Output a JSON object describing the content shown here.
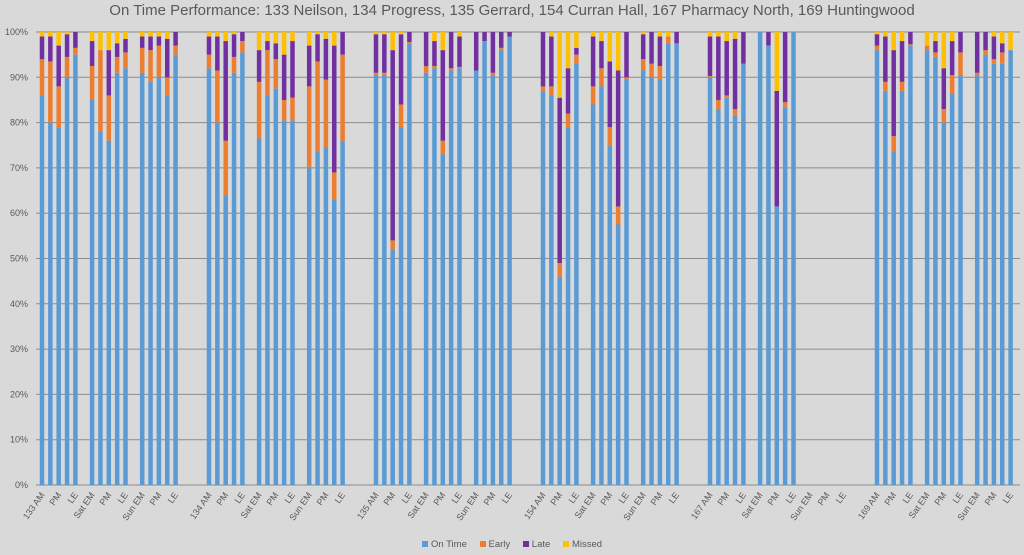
{
  "chart_data": {
    "type": "bar",
    "stacked": true,
    "title": "On Time Performance: 133 Neilson, 134 Progress, 135 Gerrard, 154 Curran Hall, 167 Pharmacy North, 169 Huntingwood",
    "xlabel": "",
    "ylabel": "",
    "ylim": [
      0,
      1
    ],
    "y_ticks": [
      "0%",
      "10%",
      "20%",
      "30%",
      "40%",
      "50%",
      "60%",
      "70%",
      "80%",
      "90%",
      "100%"
    ],
    "grid": true,
    "legend_position": "bottom",
    "colors": {
      "On Time": "#5b9bd5",
      "Early": "#ed7d31",
      "Late": "#7030a0",
      "Missed": "#ffc000"
    },
    "series_names": [
      "On Time",
      "Early",
      "Late",
      "Missed"
    ],
    "routes": [
      {
        "name": "133",
        "groups": [
          {
            "labels": [
              "133 AM",
              "",
              "PM",
              "",
              "LE"
            ],
            "bars": [
              [
                0.86,
                0.08,
                0.05,
                0.01
              ],
              [
                0.8,
                0.135,
                0.055,
                0.01
              ],
              [
                0.79,
                0.09,
                0.09,
                0.03
              ],
              [
                0.9,
                0.045,
                0.05,
                0.005
              ],
              [
                0.95,
                0.015,
                0.035,
                0.0
              ]
            ]
          },
          {
            "labels": [
              "Sat EM",
              "",
              "PM",
              "",
              "LE"
            ],
            "bars": [
              [
                0.85,
                0.075,
                0.055,
                0.02
              ],
              [
                0.78,
                0.18,
                0.0,
                0.04
              ],
              [
                0.76,
                0.1,
                0.1,
                0.04
              ],
              [
                0.91,
                0.035,
                0.03,
                0.025
              ],
              [
                0.92,
                0.035,
                0.03,
                0.015
              ]
            ]
          },
          {
            "labels": [
              "Sun EM",
              "",
              "PM",
              "",
              "LE"
            ],
            "bars": [
              [
                0.91,
                0.055,
                0.025,
                0.01
              ],
              [
                0.89,
                0.07,
                0.03,
                0.01
              ],
              [
                0.9,
                0.07,
                0.02,
                0.01
              ],
              [
                0.86,
                0.04,
                0.085,
                0.015
              ],
              [
                0.95,
                0.02,
                0.03,
                0.0
              ]
            ]
          }
        ]
      },
      {
        "name": "134",
        "groups": [
          {
            "labels": [
              "134 AM",
              "",
              "PM",
              "",
              "LE"
            ],
            "bars": [
              [
                0.92,
                0.03,
                0.04,
                0.01
              ],
              [
                0.8,
                0.115,
                0.075,
                0.01
              ],
              [
                0.64,
                0.12,
                0.22,
                0.02
              ],
              [
                0.91,
                0.035,
                0.05,
                0.005
              ],
              [
                0.955,
                0.025,
                0.02,
                0.0
              ]
            ]
          },
          {
            "labels": [
              "Sat EM",
              "",
              "PM",
              "",
              "LE"
            ],
            "bars": [
              [
                0.765,
                0.125,
                0.07,
                0.04
              ],
              [
                0.86,
                0.1,
                0.02,
                0.02
              ],
              [
                0.875,
                0.065,
                0.035,
                0.025
              ],
              [
                0.805,
                0.045,
                0.1,
                0.05
              ],
              [
                0.805,
                0.05,
                0.125,
                0.02
              ]
            ]
          },
          {
            "labels": [
              "Sun EM",
              "",
              "PM",
              "",
              "LE"
            ],
            "bars": [
              [
                0.7,
                0.18,
                0.09,
                0.03
              ],
              [
                0.735,
                0.2,
                0.06,
                0.005
              ],
              [
                0.745,
                0.15,
                0.09,
                0.015
              ],
              [
                0.63,
                0.06,
                0.28,
                0.03
              ],
              [
                0.76,
                0.19,
                0.05,
                0.0
              ]
            ]
          }
        ]
      },
      {
        "name": "135",
        "groups": [
          {
            "labels": [
              "135 AM",
              "",
              "PM",
              "",
              "LE"
            ],
            "bars": [
              [
                0.905,
                0.005,
                0.085,
                0.005
              ],
              [
                0.905,
                0.005,
                0.085,
                0.005
              ],
              [
                0.52,
                0.02,
                0.42,
                0.04
              ],
              [
                0.79,
                0.05,
                0.155,
                0.005
              ],
              [
                0.975,
                0.003,
                0.022,
                0.0
              ]
            ]
          },
          {
            "labels": [
              "Sat EM",
              "",
              "PM",
              "",
              "LE"
            ],
            "bars": [
              [
                0.91,
                0.015,
                0.075,
                0.0
              ],
              [
                0.92,
                0.005,
                0.055,
                0.02
              ],
              [
                0.73,
                0.03,
                0.2,
                0.04
              ],
              [
                0.915,
                0.005,
                0.08,
                0.0
              ],
              [
                0.92,
                0.003,
                0.067,
                0.01
              ]
            ]
          },
          {
            "labels": [
              "Sun EM",
              "",
              "PM",
              "",
              "LE"
            ],
            "bars": [
              [
                0.915,
                0.0,
                0.085,
                0.0
              ],
              [
                0.98,
                0.0,
                0.02,
                0.0
              ],
              [
                0.905,
                0.005,
                0.09,
                0.0
              ],
              [
                0.96,
                0.005,
                0.035,
                0.0
              ],
              [
                0.99,
                0.0,
                0.01,
                0.0
              ]
            ]
          }
        ]
      },
      {
        "name": "154",
        "groups": [
          {
            "labels": [
              "154 AM",
              "",
              "PM",
              "",
              "LE"
            ],
            "bars": [
              [
                0.87,
                0.01,
                0.12,
                0.0
              ],
              [
                0.86,
                0.02,
                0.11,
                0.01
              ],
              [
                0.46,
                0.03,
                0.365,
                0.145
              ],
              [
                0.79,
                0.03,
                0.1,
                0.08
              ],
              [
                0.93,
                0.02,
                0.015,
                0.035
              ]
            ]
          },
          {
            "labels": [
              "Sat EM",
              "",
              "PM",
              "",
              "LE"
            ],
            "bars": [
              [
                0.84,
                0.04,
                0.11,
                0.01
              ],
              [
                0.88,
                0.04,
                0.06,
                0.02
              ],
              [
                0.75,
                0.04,
                0.145,
                0.065
              ],
              [
                0.575,
                0.04,
                0.3,
                0.085
              ],
              [
                0.895,
                0.005,
                0.1,
                0.0
              ]
            ]
          },
          {
            "labels": [
              "Sun EM",
              "",
              "PM",
              "",
              "LE"
            ],
            "bars": [
              [
                0.915,
                0.025,
                0.055,
                0.005
              ],
              [
                0.9,
                0.03,
                0.07,
                0.0
              ],
              [
                0.895,
                0.03,
                0.065,
                0.01
              ],
              [
                0.975,
                0.015,
                0.0,
                0.01
              ],
              [
                0.975,
                0.0,
                0.025,
                0.0
              ]
            ]
          }
        ]
      },
      {
        "name": "167",
        "groups": [
          {
            "labels": [
              "167 AM",
              "",
              "PM",
              "",
              "LE"
            ],
            "bars": [
              [
                0.9,
                0.003,
                0.087,
                0.01
              ],
              [
                0.83,
                0.02,
                0.14,
                0.01
              ],
              [
                0.855,
                0.005,
                0.12,
                0.02
              ],
              [
                0.815,
                0.015,
                0.155,
                0.015
              ],
              [
                0.93,
                0.0,
                0.07,
                0.0
              ]
            ]
          },
          {
            "labels": [
              "Sat EM",
              "",
              "PM",
              "",
              "LE"
            ],
            "bars": [
              [
                1.0,
                0.0,
                0.0,
                0.0
              ],
              [
                0.97,
                0.0,
                0.03,
                0.0
              ],
              [
                0.615,
                0.0,
                0.255,
                0.13
              ],
              [
                0.835,
                0.01,
                0.155,
                0.0
              ],
              [
                1.0,
                0.0,
                0.0,
                0.0
              ]
            ]
          },
          {
            "labels": [
              "Sun EM",
              "",
              "PM",
              "",
              "LE"
            ],
            "bars": [
              null,
              null,
              null,
              null,
              null
            ]
          }
        ]
      },
      {
        "name": "169",
        "groups": [
          {
            "labels": [
              "169 AM",
              "",
              "PM",
              "",
              "LE"
            ],
            "bars": [
              [
                0.96,
                0.01,
                0.025,
                0.005
              ],
              [
                0.87,
                0.02,
                0.1,
                0.01
              ],
              [
                0.735,
                0.035,
                0.19,
                0.04
              ],
              [
                0.87,
                0.02,
                0.09,
                0.02
              ],
              [
                0.97,
                0.003,
                0.027,
                0.0
              ]
            ]
          },
          {
            "labels": [
              "Sat EM",
              "",
              "PM",
              "",
              "LE"
            ],
            "bars": [
              [
                0.96,
                0.01,
                0.0,
                0.03
              ],
              [
                0.945,
                0.01,
                0.025,
                0.02
              ],
              [
                0.8,
                0.03,
                0.09,
                0.08
              ],
              [
                0.865,
                0.04,
                0.075,
                0.02
              ],
              [
                0.905,
                0.05,
                0.045,
                0.0
              ]
            ]
          },
          {
            "labels": [
              "Sun EM",
              "",
              "PM",
              "",
              "LE"
            ],
            "bars": [
              [
                0.905,
                0.005,
                0.09,
                0.0
              ],
              [
                0.95,
                0.01,
                0.04,
                0.0
              ],
              [
                0.93,
                0.01,
                0.05,
                0.01
              ],
              [
                0.93,
                0.025,
                0.02,
                0.025
              ],
              [
                0.96,
                0.0,
                0.0,
                0.04
              ]
            ]
          }
        ]
      }
    ]
  }
}
